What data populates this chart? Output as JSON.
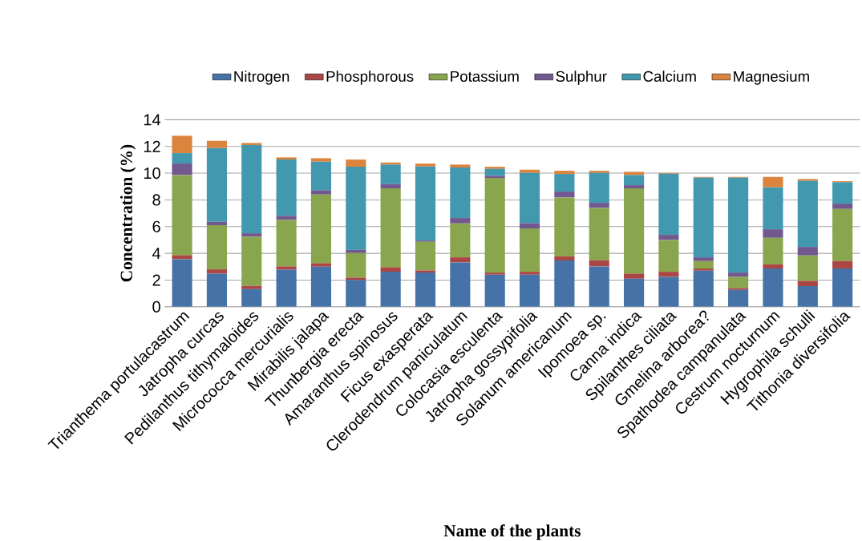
{
  "chart_data": {
    "type": "bar",
    "stacked": true,
    "xlabel": "Name of the plants",
    "ylabel": "Concentration (%)",
    "categories": [
      "Trianthema portulacastrum",
      "Jatropha curcas",
      "Pedilanthus tithymaloides",
      "Micrococca mercurialis",
      "Mirabilis jalapa",
      "Thunbergia erecta",
      "Amaranthus spinosus",
      "Ficus exasperata",
      "Clerodendrum paniculatum",
      "Colocasia esculenta",
      "Jatropha gossypifolia",
      "Solanum americanum",
      "Ipomoea sp.",
      "Canna indica",
      "Spilanthes ciliata",
      "Gmelina arborea?",
      "Spathodea campanulata",
      "Cestrum nocturnum",
      "Hygrophila schulli",
      "Tithonia diversifolia"
    ],
    "series": [
      {
        "name": "Nitrogen",
        "color": "#4572a7",
        "values": [
          3.56,
          2.48,
          1.32,
          2.78,
          3.0,
          2.0,
          2.62,
          2.56,
          3.32,
          2.4,
          2.4,
          3.46,
          3.02,
          2.1,
          2.24,
          2.7,
          1.26,
          2.86,
          1.54,
          2.86
        ]
      },
      {
        "name": "Phosphorous",
        "color": "#aa4643",
        "values": [
          0.3,
          0.32,
          0.24,
          0.24,
          0.26,
          0.18,
          0.34,
          0.16,
          0.38,
          0.16,
          0.22,
          0.32,
          0.46,
          0.38,
          0.38,
          0.16,
          0.14,
          0.32,
          0.4,
          0.56
        ]
      },
      {
        "name": "Potassium",
        "color": "#89a54e",
        "values": [
          6.0,
          3.3,
          3.68,
          3.48,
          5.14,
          1.84,
          5.9,
          2.14,
          2.54,
          7.08,
          3.24,
          4.4,
          3.92,
          6.38,
          2.38,
          0.56,
          0.84,
          1.98,
          1.9,
          3.9
        ]
      },
      {
        "name": "Sulphur",
        "color": "#71588f",
        "values": [
          0.86,
          0.26,
          0.26,
          0.3,
          0.32,
          0.24,
          0.32,
          0.1,
          0.4,
          0.16,
          0.4,
          0.44,
          0.38,
          0.24,
          0.38,
          0.28,
          0.32,
          0.64,
          0.64,
          0.4
        ]
      },
      {
        "name": "Calcium",
        "color": "#4198af",
        "values": [
          0.78,
          5.52,
          6.6,
          4.22,
          2.14,
          6.22,
          1.46,
          5.54,
          3.78,
          0.52,
          3.76,
          1.32,
          2.24,
          0.76,
          4.58,
          5.96,
          7.1,
          3.14,
          4.94,
          1.6
        ]
      },
      {
        "name": "Magnesium",
        "color": "#db843d",
        "values": [
          1.3,
          0.54,
          0.16,
          0.16,
          0.26,
          0.54,
          0.16,
          0.22,
          0.22,
          0.16,
          0.24,
          0.24,
          0.16,
          0.24,
          0.06,
          0.06,
          0.06,
          0.78,
          0.14,
          0.08
        ]
      }
    ],
    "ylim": [
      0,
      14
    ],
    "yticks": [
      0,
      2,
      4,
      6,
      8,
      10,
      12,
      14
    ],
    "grid": "y",
    "legend": "top"
  }
}
